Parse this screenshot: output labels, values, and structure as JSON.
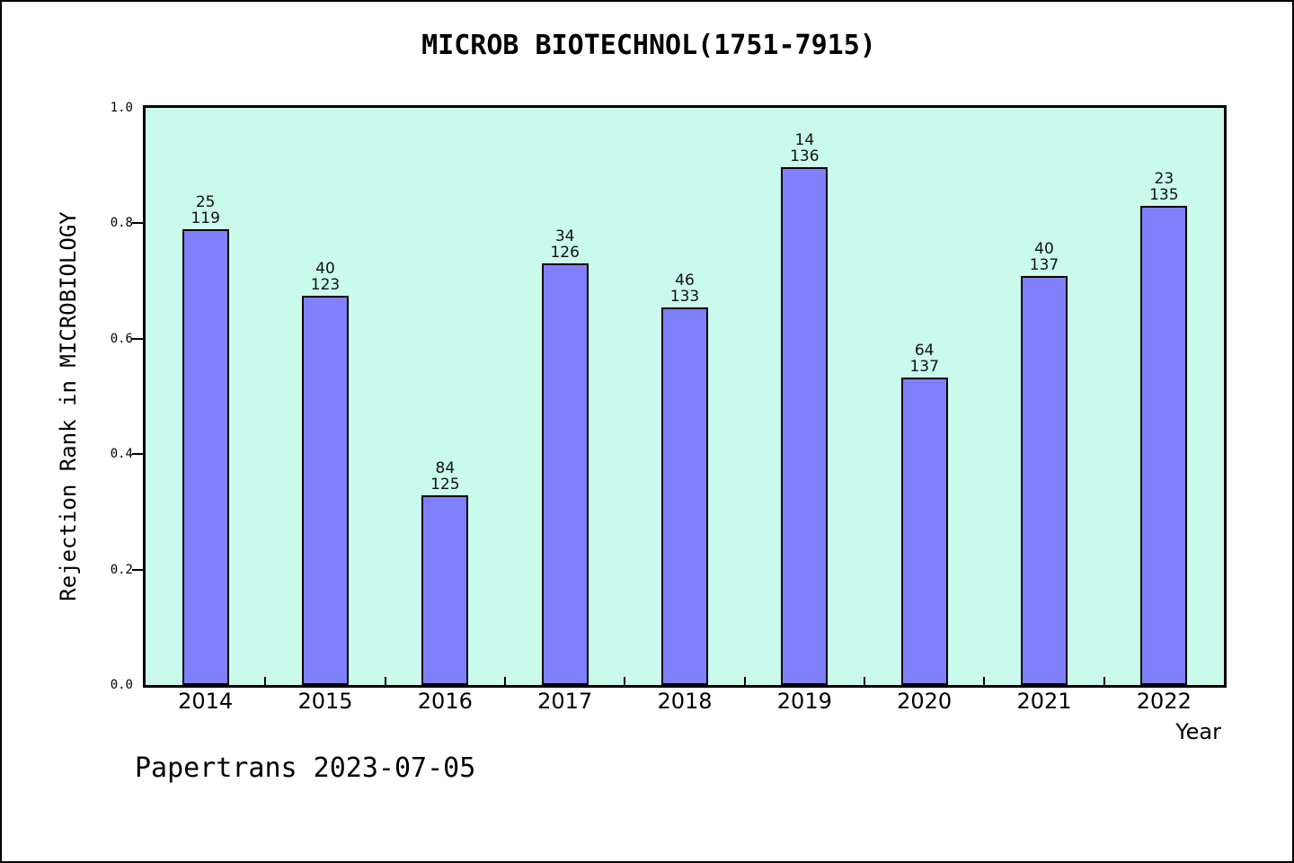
{
  "title": "MICROB BIOTECHNOL(1751-7915)",
  "watermark": "Papertrans 2023-07-05",
  "y_axis": {
    "label": "Rejection Rank in MICROBIOLOGY",
    "tick_labels": [
      "0.0",
      "0.2",
      "0.4",
      "0.6",
      "0.8",
      "1.0"
    ]
  },
  "x_axis": {
    "label": "Year"
  },
  "colors": {
    "bar_fill": "#8080FA",
    "bar_border": "#000000",
    "plot_bg": "#C9FAEC",
    "frame": "#000000",
    "page_bg": "#FFFFFF"
  },
  "chart_data": {
    "type": "bar",
    "title": "MICROB BIOTECHNOL(1751-7915)",
    "xlabel": "Year",
    "ylabel": "Rejection Rank in MICROBIOLOGY",
    "ylim": [
      0.0,
      1.0
    ],
    "yticks": [
      0.0,
      0.2,
      0.4,
      0.6,
      0.8,
      1.0
    ],
    "grid": false,
    "legend_position": "none",
    "categories": [
      "2014",
      "2015",
      "2016",
      "2017",
      "2018",
      "2019",
      "2020",
      "2021",
      "2022"
    ],
    "values": [
      0.79,
      0.675,
      0.328,
      0.73,
      0.654,
      0.897,
      0.533,
      0.708,
      0.83
    ],
    "bar_labels": [
      {
        "rank": "25",
        "total": "119"
      },
      {
        "rank": "40",
        "total": "123"
      },
      {
        "rank": "84",
        "total": "125"
      },
      {
        "rank": "34",
        "total": "126"
      },
      {
        "rank": "46",
        "total": "133"
      },
      {
        "rank": "14",
        "total": "136"
      },
      {
        "rank": "64",
        "total": "137"
      },
      {
        "rank": "40",
        "total": "137"
      },
      {
        "rank": "23",
        "total": "135"
      }
    ],
    "annotation_note": "each bar label shows rejection rank over journal count; bar height = (total - rank) / total"
  }
}
